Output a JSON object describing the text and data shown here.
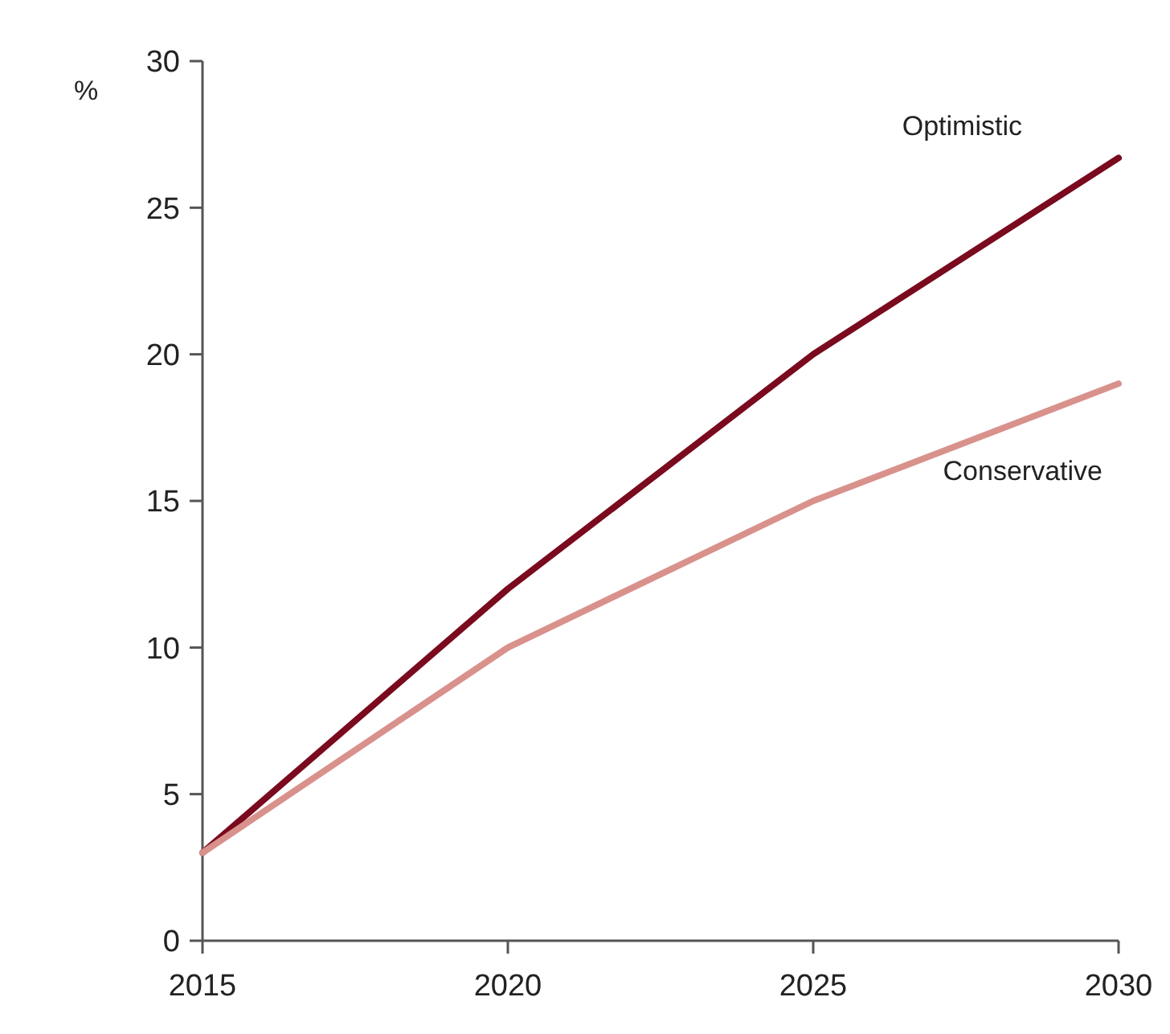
{
  "chart_data": {
    "type": "line",
    "ylabel": "%",
    "x": [
      2015,
      2020,
      2025,
      2030
    ],
    "series": [
      {
        "name": "Optimistic",
        "color": "#7a0a1e",
        "values": [
          3,
          12,
          20,
          26.7
        ]
      },
      {
        "name": "Conservative",
        "color": "#d9918c",
        "values": [
          3,
          10,
          15,
          19
        ]
      }
    ],
    "xlim": [
      2015,
      2030
    ],
    "xticks": [
      2015,
      2020,
      2025,
      2030
    ],
    "ylim": [
      0,
      30
    ],
    "yticks": [
      0,
      5,
      10,
      15,
      20,
      25,
      30
    ],
    "grid": false
  }
}
